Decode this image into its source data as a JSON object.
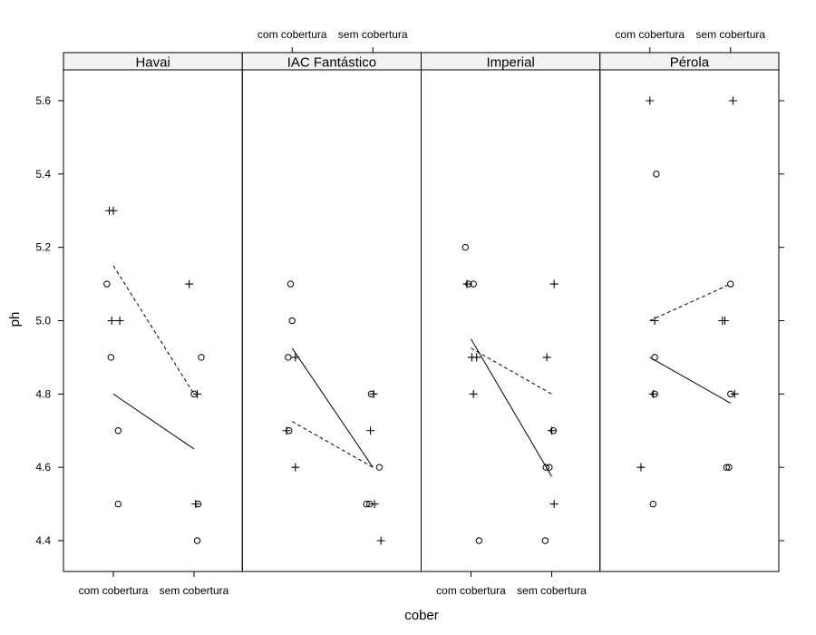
{
  "chart_data": {
    "type": "scatter",
    "xlabel": "cober",
    "ylabel": "ph",
    "ylim": [
      4.32,
      5.68
    ],
    "yticks": [
      4.4,
      4.6,
      4.8,
      5.0,
      5.2,
      5.4,
      5.6
    ],
    "ytick_labels": [
      "4.4",
      "4.6",
      "4.8",
      "5.0",
      "5.2",
      "5.4",
      "5.6"
    ],
    "categories": [
      "com cobertura",
      "sem cobertura"
    ],
    "panels": [
      {
        "name": "Havai",
        "points": [
          {
            "x": 0.95,
            "y": 5.3,
            "symbol": "plus"
          },
          {
            "x": 1.0,
            "y": 5.3,
            "symbol": "plus"
          },
          {
            "x": 0.92,
            "y": 5.1,
            "symbol": "circle"
          },
          {
            "x": 0.98,
            "y": 5.0,
            "symbol": "plus"
          },
          {
            "x": 1.08,
            "y": 5.0,
            "symbol": "plus"
          },
          {
            "x": 0.97,
            "y": 4.9,
            "symbol": "circle"
          },
          {
            "x": 1.06,
            "y": 4.7,
            "symbol": "circle"
          },
          {
            "x": 1.06,
            "y": 4.5,
            "symbol": "circle"
          },
          {
            "x": 1.94,
            "y": 5.1,
            "symbol": "plus"
          },
          {
            "x": 2.09,
            "y": 4.9,
            "symbol": "circle"
          },
          {
            "x": 2.0,
            "y": 4.8,
            "symbol": "circle"
          },
          {
            "x": 2.04,
            "y": 4.8,
            "symbol": "plus"
          },
          {
            "x": 2.02,
            "y": 4.5,
            "symbol": "plus"
          },
          {
            "x": 2.05,
            "y": 4.5,
            "symbol": "circle"
          },
          {
            "x": 2.04,
            "y": 4.4,
            "symbol": "circle"
          }
        ],
        "lines": [
          {
            "style": "solid",
            "x": [
              1,
              2
            ],
            "y": [
              4.8,
              4.65
            ]
          },
          {
            "style": "dashed",
            "x": [
              1,
              2
            ],
            "y": [
              5.15,
              4.8
            ]
          }
        ]
      },
      {
        "name": "IAC Fantástico",
        "points": [
          {
            "x": 0.98,
            "y": 5.1,
            "symbol": "circle"
          },
          {
            "x": 1.0,
            "y": 5.0,
            "symbol": "circle"
          },
          {
            "x": 0.95,
            "y": 4.9,
            "symbol": "circle"
          },
          {
            "x": 1.04,
            "y": 4.9,
            "symbol": "plus"
          },
          {
            "x": 0.93,
            "y": 4.7,
            "symbol": "plus"
          },
          {
            "x": 0.96,
            "y": 4.7,
            "symbol": "circle"
          },
          {
            "x": 1.04,
            "y": 4.6,
            "symbol": "plus"
          },
          {
            "x": 1.98,
            "y": 4.8,
            "symbol": "circle"
          },
          {
            "x": 2.01,
            "y": 4.8,
            "symbol": "plus"
          },
          {
            "x": 1.97,
            "y": 4.7,
            "symbol": "plus"
          },
          {
            "x": 2.08,
            "y": 4.6,
            "symbol": "circle"
          },
          {
            "x": 1.92,
            "y": 4.5,
            "symbol": "circle"
          },
          {
            "x": 1.96,
            "y": 4.5,
            "symbol": "circle"
          },
          {
            "x": 2.02,
            "y": 4.5,
            "symbol": "plus"
          },
          {
            "x": 2.1,
            "y": 4.4,
            "symbol": "plus"
          }
        ],
        "lines": [
          {
            "style": "solid",
            "x": [
              1,
              2
            ],
            "y": [
              4.925,
              4.6
            ]
          },
          {
            "style": "dashed",
            "x": [
              1,
              2
            ],
            "y": [
              4.725,
              4.6
            ]
          }
        ]
      },
      {
        "name": "Imperial",
        "points": [
          {
            "x": 0.93,
            "y": 5.2,
            "symbol": "circle"
          },
          {
            "x": 0.95,
            "y": 5.1,
            "symbol": "plus"
          },
          {
            "x": 0.97,
            "y": 5.1,
            "symbol": "circle"
          },
          {
            "x": 1.03,
            "y": 5.1,
            "symbol": "circle"
          },
          {
            "x": 1.01,
            "y": 4.9,
            "symbol": "plus"
          },
          {
            "x": 1.07,
            "y": 4.9,
            "symbol": "plus"
          },
          {
            "x": 1.03,
            "y": 4.8,
            "symbol": "plus"
          },
          {
            "x": 1.1,
            "y": 4.4,
            "symbol": "circle"
          },
          {
            "x": 2.03,
            "y": 5.1,
            "symbol": "plus"
          },
          {
            "x": 1.94,
            "y": 4.9,
            "symbol": "plus"
          },
          {
            "x": 2.0,
            "y": 4.7,
            "symbol": "plus"
          },
          {
            "x": 2.02,
            "y": 4.7,
            "symbol": "circle"
          },
          {
            "x": 1.93,
            "y": 4.6,
            "symbol": "circle"
          },
          {
            "x": 1.97,
            "y": 4.6,
            "symbol": "circle"
          },
          {
            "x": 2.03,
            "y": 4.5,
            "symbol": "plus"
          },
          {
            "x": 1.92,
            "y": 4.4,
            "symbol": "circle"
          }
        ],
        "lines": [
          {
            "style": "solid",
            "x": [
              1,
              2
            ],
            "y": [
              4.95,
              4.575
            ]
          },
          {
            "style": "dashed",
            "x": [
              1,
              2
            ],
            "y": [
              4.925,
              4.8
            ]
          }
        ]
      },
      {
        "name": "Pérola",
        "points": [
          {
            "x": 1.0,
            "y": 5.6,
            "symbol": "plus"
          },
          {
            "x": 1.08,
            "y": 5.4,
            "symbol": "circle"
          },
          {
            "x": 1.06,
            "y": 5.0,
            "symbol": "plus"
          },
          {
            "x": 1.06,
            "y": 4.9,
            "symbol": "circle"
          },
          {
            "x": 1.04,
            "y": 4.8,
            "symbol": "plus"
          },
          {
            "x": 1.06,
            "y": 4.8,
            "symbol": "circle"
          },
          {
            "x": 0.89,
            "y": 4.6,
            "symbol": "plus"
          },
          {
            "x": 1.04,
            "y": 4.5,
            "symbol": "circle"
          },
          {
            "x": 2.03,
            "y": 5.6,
            "symbol": "plus"
          },
          {
            "x": 2.0,
            "y": 5.1,
            "symbol": "circle"
          },
          {
            "x": 1.9,
            "y": 5.0,
            "symbol": "plus"
          },
          {
            "x": 1.93,
            "y": 5.0,
            "symbol": "plus"
          },
          {
            "x": 2.0,
            "y": 4.8,
            "symbol": "circle"
          },
          {
            "x": 2.05,
            "y": 4.8,
            "symbol": "plus"
          },
          {
            "x": 1.95,
            "y": 4.6,
            "symbol": "circle"
          },
          {
            "x": 1.98,
            "y": 4.6,
            "symbol": "circle"
          }
        ],
        "lines": [
          {
            "style": "solid",
            "x": [
              1,
              2
            ],
            "y": [
              4.9,
              4.775
            ]
          },
          {
            "style": "dashed",
            "x": [
              1,
              2
            ],
            "y": [
              5.0,
              5.1
            ]
          }
        ]
      }
    ]
  }
}
